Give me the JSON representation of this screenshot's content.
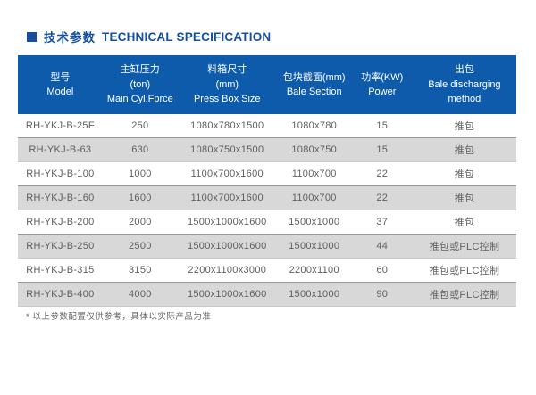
{
  "page": {
    "title_zh": "技术参数",
    "title_en": "TECHNICAL SPECIFICATION",
    "footnote": "* 以上参数配置仅供参考，具体以实际产品为准"
  },
  "colors": {
    "header_bg": "#0e5bac",
    "title_color": "#164f9e",
    "row_alt_bg": "#d8d8d8",
    "row_alt_border": "#979797",
    "cell_text": "#5f5f5f",
    "footnote_text": "#666666"
  },
  "table": {
    "columns": [
      {
        "lines": [
          "型号",
          "Model"
        ]
      },
      {
        "lines": [
          "主缸压力",
          "(ton)",
          "Main Cyl.Fprce"
        ]
      },
      {
        "lines": [
          "料箱尺寸",
          "(mm)",
          "Press Box Size"
        ]
      },
      {
        "lines": [
          "包块截面(mm)",
          "Bale Section"
        ]
      },
      {
        "lines": [
          "功率(KW)",
          "Power"
        ]
      },
      {
        "lines": [
          "出包",
          "Bale discharging",
          "method"
        ]
      }
    ],
    "rows": [
      [
        "RH-YKJ-B-25F",
        "250",
        "1080x780x1500",
        "1080x780",
        "15",
        "推包"
      ],
      [
        "RH-YKJ-B-63",
        "630",
        "1080x750x1500",
        "1080x750",
        "15",
        "推包"
      ],
      [
        "RH-YKJ-B-100",
        "1000",
        "1100x700x1600",
        "1100x700",
        "22",
        "推包"
      ],
      [
        "RH-YKJ-B-160",
        "1600",
        "1100x700x1600",
        "1100x700",
        "22",
        "推包"
      ],
      [
        "RH-YKJ-B-200",
        "2000",
        "1500x1000x1600",
        "1500x1000",
        "37",
        "推包"
      ],
      [
        "RH-YKJ-B-250",
        "2500",
        "1500x1000x1600",
        "1500x1000",
        "44",
        "推包或PLC控制"
      ],
      [
        "RH-YKJ-B-315",
        "3150",
        "2200x1100x3000",
        "2200x1100",
        "60",
        "推包或PLC控制"
      ],
      [
        "RH-YKJ-B-400",
        "4000",
        "1500x1000x1600",
        "1500x1000",
        "90",
        "推包或PLC控制"
      ]
    ]
  }
}
